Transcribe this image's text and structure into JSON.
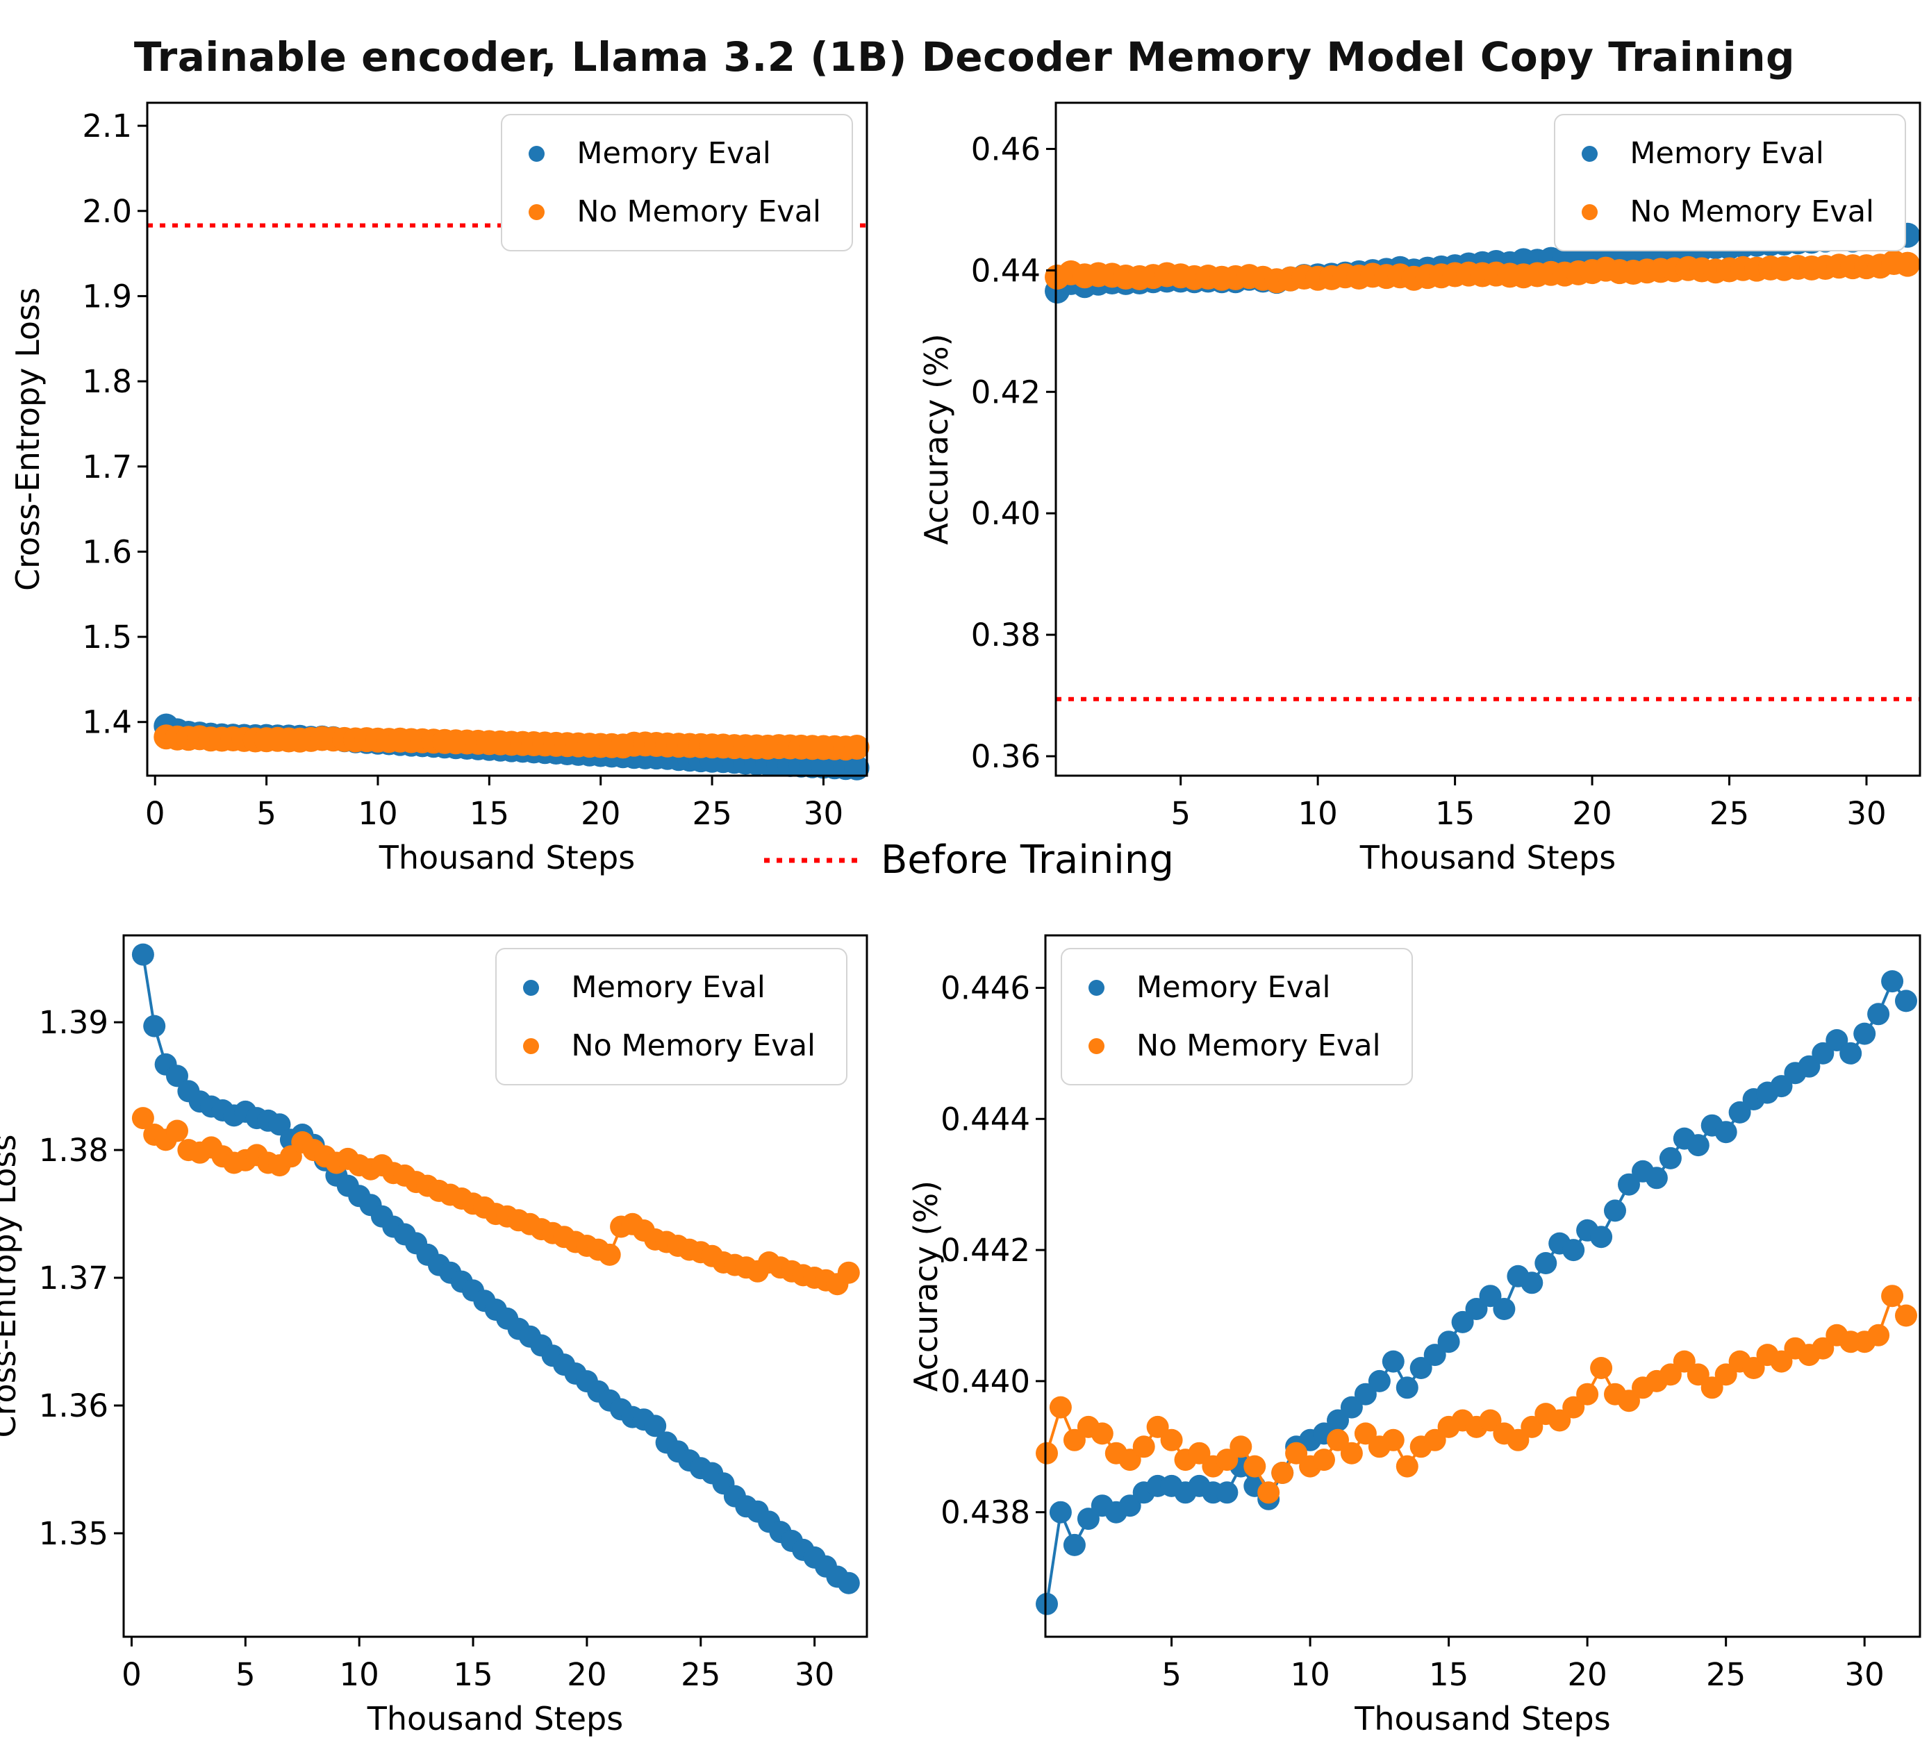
{
  "title": "Trainable encoder, Llama 3.2 (1B) Decoder Memory Model Copy Training",
  "colors": {
    "memory": "#1f77b4",
    "no_memory": "#ff7f0e",
    "before": "#ff0000"
  },
  "legend": {
    "memory_eval": "Memory Eval",
    "no_memory_eval": "No Memory Eval",
    "before_training": "Before Training"
  },
  "chart_data": {
    "type": "scatter",
    "x_label": "Thousand Steps",
    "series": {
      "x": [
        0.5,
        1,
        1.5,
        2,
        2.5,
        3,
        3.5,
        4,
        4.5,
        5,
        5.5,
        6,
        6.5,
        7,
        7.5,
        8,
        8.5,
        9,
        9.5,
        10,
        10.5,
        11,
        11.5,
        12,
        12.5,
        13,
        13.5,
        14,
        14.5,
        15,
        15.5,
        16,
        16.5,
        17,
        17.5,
        18,
        18.5,
        19,
        19.5,
        20,
        20.5,
        21,
        21.5,
        22,
        22.5,
        23,
        23.5,
        24,
        24.5,
        25,
        25.5,
        26,
        26.5,
        27,
        27.5,
        28,
        28.5,
        29,
        29.5,
        30,
        30.5,
        31,
        31.5
      ],
      "loss_memory": [
        1.3953,
        1.3897,
        1.3867,
        1.3858,
        1.3846,
        1.3838,
        1.3834,
        1.3831,
        1.3827,
        1.383,
        1.3825,
        1.3823,
        1.382,
        1.3808,
        1.3812,
        1.3804,
        1.3792,
        1.378,
        1.3772,
        1.3764,
        1.3757,
        1.3748,
        1.374,
        1.3734,
        1.3727,
        1.3718,
        1.371,
        1.3704,
        1.3697,
        1.369,
        1.3682,
        1.3675,
        1.3668,
        1.366,
        1.3654,
        1.3647,
        1.3639,
        1.3632,
        1.3625,
        1.3619,
        1.3611,
        1.3604,
        1.3597,
        1.3591,
        1.3589,
        1.3584,
        1.3571,
        1.3564,
        1.3557,
        1.3551,
        1.3547,
        1.3539,
        1.3529,
        1.3521,
        1.3517,
        1.3509,
        1.3501,
        1.3494,
        1.3487,
        1.3481,
        1.3474,
        1.3466,
        1.3461
      ],
      "loss_no_memory": [
        1.3825,
        1.3812,
        1.3808,
        1.3815,
        1.38,
        1.3798,
        1.3802,
        1.3795,
        1.379,
        1.3792,
        1.3796,
        1.379,
        1.3788,
        1.3795,
        1.3806,
        1.38,
        1.3795,
        1.379,
        1.3793,
        1.3788,
        1.3785,
        1.3788,
        1.3782,
        1.378,
        1.3775,
        1.3772,
        1.3768,
        1.3765,
        1.3762,
        1.3758,
        1.3755,
        1.375,
        1.3748,
        1.3745,
        1.3742,
        1.3738,
        1.3735,
        1.3732,
        1.3728,
        1.3725,
        1.3722,
        1.3718,
        1.374,
        1.3742,
        1.3737,
        1.373,
        1.3728,
        1.3725,
        1.3722,
        1.372,
        1.3717,
        1.3712,
        1.371,
        1.3708,
        1.3705,
        1.3712,
        1.3708,
        1.3705,
        1.3702,
        1.37,
        1.3698,
        1.3695,
        1.3704
      ],
      "acc_memory": [
        0.4366,
        0.438,
        0.4375,
        0.4379,
        0.4381,
        0.438,
        0.4381,
        0.4383,
        0.4384,
        0.4384,
        0.4383,
        0.4384,
        0.4383,
        0.4383,
        0.4387,
        0.4384,
        0.4382,
        0.4386,
        0.439,
        0.4391,
        0.4392,
        0.4394,
        0.4396,
        0.4398,
        0.44,
        0.4403,
        0.4399,
        0.4402,
        0.4404,
        0.4406,
        0.4409,
        0.4411,
        0.4413,
        0.4411,
        0.4416,
        0.4415,
        0.4418,
        0.4421,
        0.442,
        0.4423,
        0.4422,
        0.4426,
        0.443,
        0.4432,
        0.4431,
        0.4434,
        0.4437,
        0.4436,
        0.4439,
        0.4438,
        0.4441,
        0.4443,
        0.4444,
        0.4445,
        0.4447,
        0.4448,
        0.445,
        0.4452,
        0.445,
        0.4453,
        0.4456,
        0.4461,
        0.4458
      ],
      "acc_no_memory": [
        0.4389,
        0.4396,
        0.4391,
        0.4393,
        0.4392,
        0.4389,
        0.4388,
        0.439,
        0.4393,
        0.4391,
        0.4388,
        0.4389,
        0.4387,
        0.4388,
        0.439,
        0.4387,
        0.4383,
        0.4386,
        0.4389,
        0.4387,
        0.4388,
        0.4391,
        0.4389,
        0.4392,
        0.439,
        0.4391,
        0.4387,
        0.439,
        0.4391,
        0.4393,
        0.4394,
        0.4393,
        0.4394,
        0.4392,
        0.4391,
        0.4393,
        0.4395,
        0.4394,
        0.4396,
        0.4398,
        0.4402,
        0.4398,
        0.4397,
        0.4399,
        0.44,
        0.4401,
        0.4403,
        0.4401,
        0.4399,
        0.4401,
        0.4403,
        0.4402,
        0.4404,
        0.4403,
        0.4405,
        0.4404,
        0.4405,
        0.4407,
        0.4406,
        0.4406,
        0.4407,
        0.4413,
        0.441
      ]
    },
    "series_labels": {
      "memory": "Memory Eval",
      "no_memory": "No Memory Eval"
    },
    "before_training": {
      "loss": 1.983,
      "accuracy": 0.3694
    },
    "plots": [
      {
        "id": "loss-full",
        "xlabel": "Thousand Steps",
        "ylabel": "Cross-Entropy Loss",
        "xlim": [
          -0.35,
          31.95
        ],
        "ylim": [
          1.337,
          2.127
        ],
        "xticks": [
          0,
          5,
          10,
          15,
          20,
          25,
          30
        ],
        "xtick_labels": [
          "0",
          "5",
          "10",
          "15",
          "20",
          "25",
          "30"
        ],
        "yticks": [
          1.4,
          1.5,
          1.6,
          1.7,
          1.8,
          1.9,
          2.0,
          2.1
        ],
        "ytick_labels": [
          "1.4",
          "1.5",
          "1.6",
          "1.7",
          "1.8",
          "1.9",
          "2.0",
          "2.1"
        ],
        "hline": 1.983,
        "series": [
          {
            "key": "loss_memory",
            "color": "memory"
          },
          {
            "key": "loss_no_memory",
            "color": "no_memory"
          }
        ]
      },
      {
        "id": "acc-full",
        "xlabel": "Thousand Steps",
        "ylabel": "Accuracy (%)",
        "xlim": [
          0.45,
          31.95
        ],
        "ylim": [
          0.3568,
          0.4676
        ],
        "xticks": [
          5,
          10,
          15,
          20,
          25,
          30
        ],
        "xtick_labels": [
          "5",
          "10",
          "15",
          "20",
          "25",
          "30"
        ],
        "yticks": [
          0.36,
          0.38,
          0.4,
          0.42,
          0.44,
          0.46
        ],
        "ytick_labels": [
          "0.36",
          "0.38",
          "0.40",
          "0.42",
          "0.44",
          "0.46"
        ],
        "hline": 0.3694,
        "series": [
          {
            "key": "acc_memory",
            "color": "memory"
          },
          {
            "key": "acc_no_memory",
            "color": "no_memory"
          }
        ]
      },
      {
        "id": "loss-zoom",
        "xlabel": "Thousand Steps",
        "ylabel": "Cross-Entropy Loss",
        "xlim": [
          -0.35,
          32.3
        ],
        "ylim": [
          1.3419,
          1.3968
        ],
        "xticks": [
          0,
          5,
          10,
          15,
          20,
          25,
          30
        ],
        "xtick_labels": [
          "0",
          "5",
          "10",
          "15",
          "20",
          "25",
          "30"
        ],
        "yticks": [
          1.35,
          1.36,
          1.37,
          1.38,
          1.39
        ],
        "ytick_labels": [
          "1.35",
          "1.36",
          "1.37",
          "1.38",
          "1.39"
        ],
        "hline": null,
        "series": [
          {
            "key": "loss_memory",
            "color": "memory"
          },
          {
            "key": "loss_no_memory",
            "color": "no_memory"
          }
        ]
      },
      {
        "id": "acc-zoom",
        "xlabel": "Thousand Steps",
        "ylabel": "Accuracy (%)",
        "xlim": [
          0.45,
          32.0
        ],
        "ylim": [
          0.4361,
          0.4468
        ],
        "xticks": [
          5,
          10,
          15,
          20,
          25,
          30
        ],
        "xtick_labels": [
          "5",
          "10",
          "15",
          "20",
          "25",
          "30"
        ],
        "yticks": [
          0.438,
          0.44,
          0.442,
          0.444,
          0.446
        ],
        "ytick_labels": [
          "0.438",
          "0.440",
          "0.442",
          "0.444",
          "0.446"
        ],
        "hline": null,
        "series": [
          {
            "key": "acc_memory",
            "color": "memory"
          },
          {
            "key": "acc_no_memory",
            "color": "no_memory"
          }
        ]
      }
    ]
  }
}
